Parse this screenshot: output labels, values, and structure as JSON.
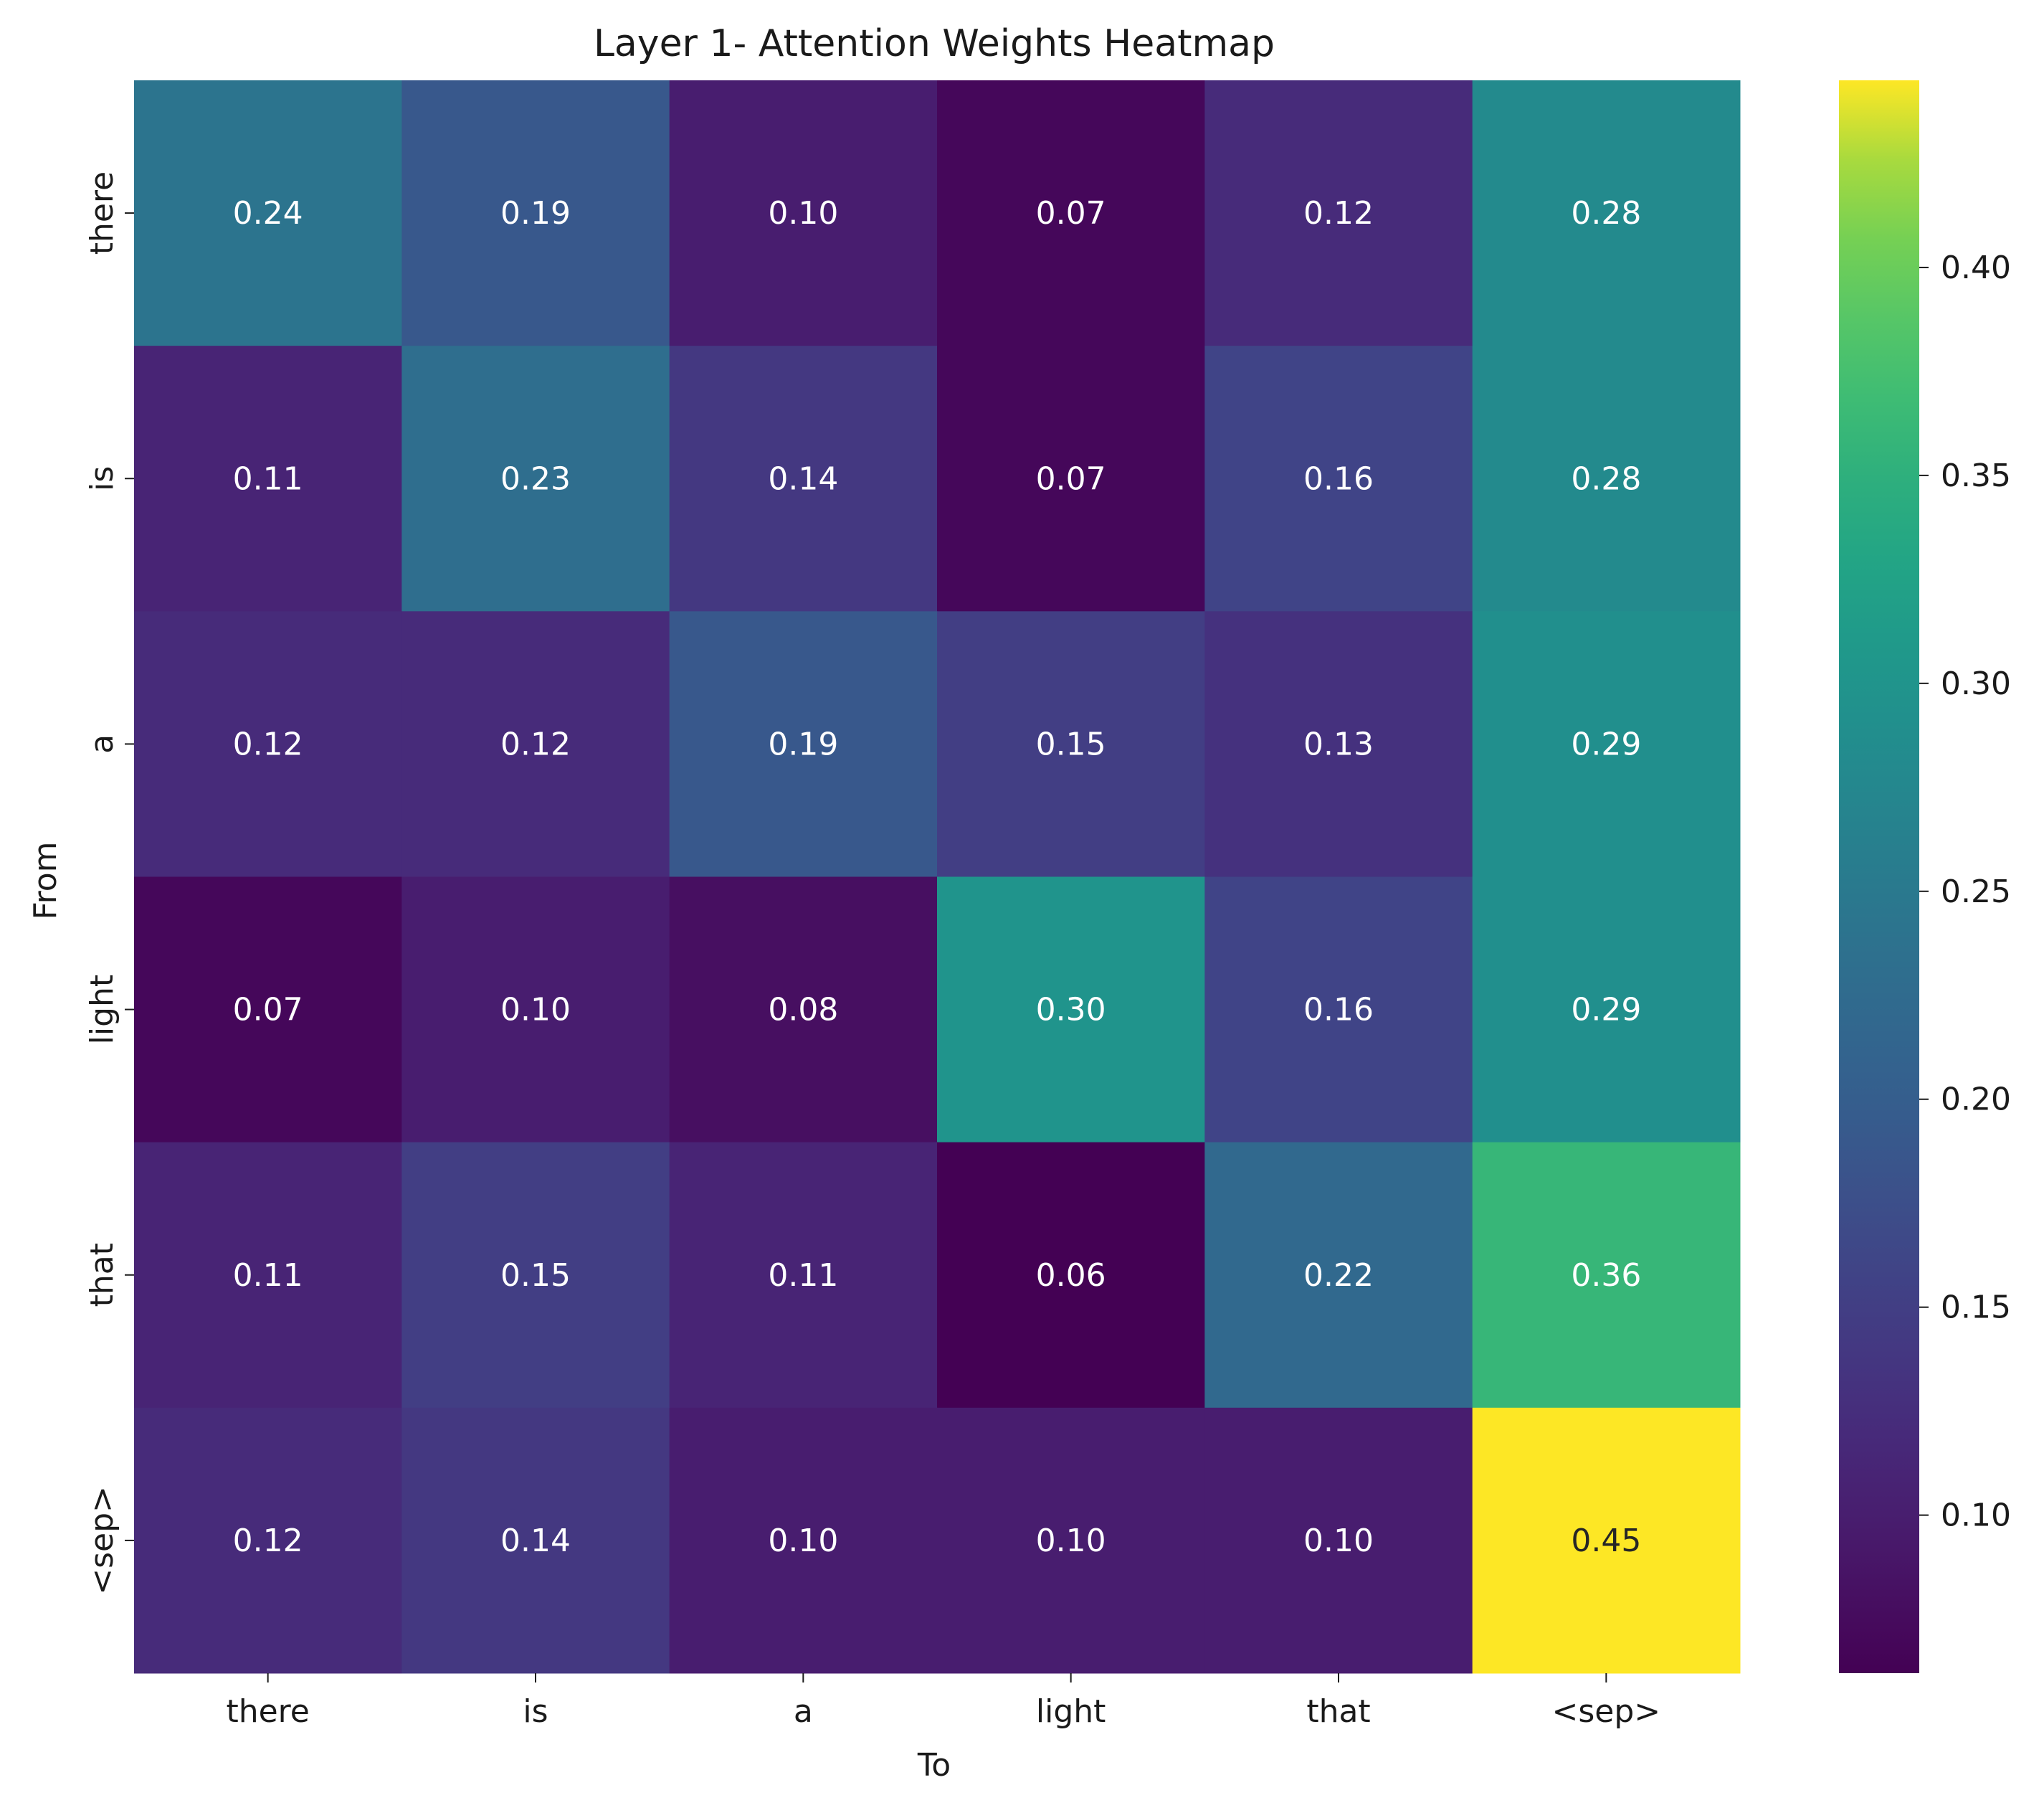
{
  "chart_data": {
    "type": "heatmap",
    "title": "Layer 1- Attention Weights Heatmap",
    "xlabel": "To",
    "ylabel": "From",
    "x_categories": [
      "there",
      "is",
      "a",
      "light",
      "that",
      "<sep>"
    ],
    "y_categories": [
      "there",
      "is",
      "a",
      "light",
      "that",
      "<sep>"
    ],
    "values": [
      [
        0.24,
        0.19,
        0.1,
        0.07,
        0.12,
        0.28
      ],
      [
        0.11,
        0.23,
        0.14,
        0.07,
        0.16,
        0.28
      ],
      [
        0.12,
        0.12,
        0.19,
        0.15,
        0.13,
        0.29
      ],
      [
        0.07,
        0.1,
        0.08,
        0.3,
        0.16,
        0.29
      ],
      [
        0.11,
        0.15,
        0.11,
        0.06,
        0.22,
        0.36
      ],
      [
        0.12,
        0.14,
        0.1,
        0.1,
        0.1,
        0.45
      ]
    ],
    "cell_labels": [
      [
        "0.24",
        "0.19",
        "0.10",
        "0.07",
        "0.12",
        "0.28"
      ],
      [
        "0.11",
        "0.23",
        "0.14",
        "0.07",
        "0.16",
        "0.28"
      ],
      [
        "0.12",
        "0.12",
        "0.19",
        "0.15",
        "0.13",
        "0.29"
      ],
      [
        "0.07",
        "0.10",
        "0.08",
        "0.30",
        "0.16",
        "0.29"
      ],
      [
        "0.11",
        "0.15",
        "0.11",
        "0.06",
        "0.22",
        "0.36"
      ],
      [
        "0.12",
        "0.14",
        "0.10",
        "0.10",
        "0.10",
        "0.45"
      ]
    ],
    "colormap": "viridis",
    "color_range": [
      0.062,
      0.445
    ],
    "colorbar": {
      "ticks": [
        0.1,
        0.15,
        0.2,
        0.25,
        0.3,
        0.35,
        0.4
      ],
      "tick_labels": [
        "0.10",
        "0.15",
        "0.20",
        "0.25",
        "0.30",
        "0.35",
        "0.40"
      ]
    },
    "grid": false,
    "legend": "colorbar-right"
  }
}
